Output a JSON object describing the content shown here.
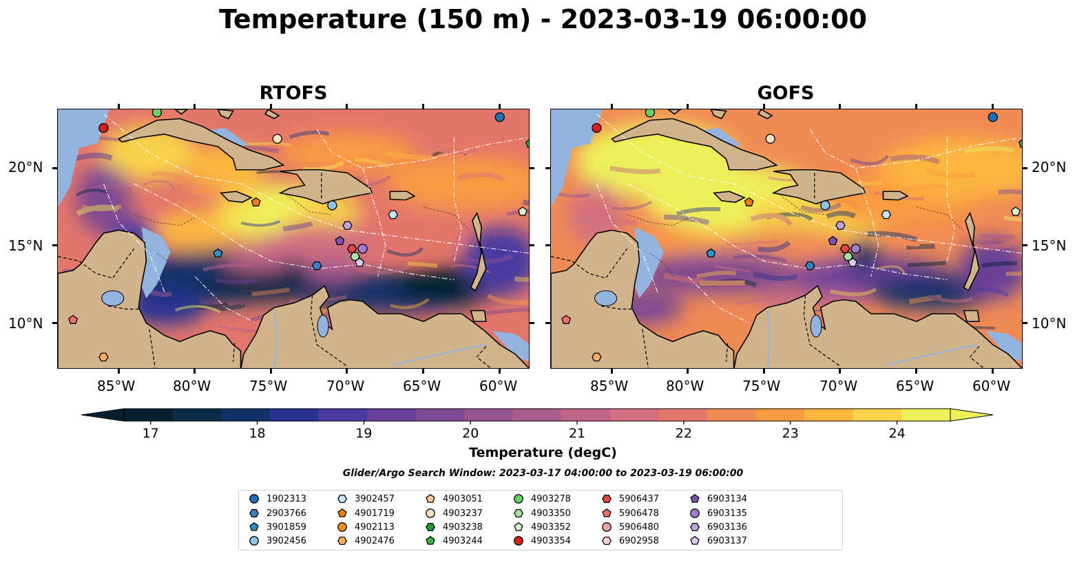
{
  "title": "Temperature (150 m) - 2023-03-19 06:00:00",
  "panels": [
    {
      "name": "RTOFS",
      "variant": "rtofs"
    },
    {
      "name": "GOFS",
      "variant": "gofs"
    }
  ],
  "lat_labels": [
    "20°N",
    "15°N",
    "10°N"
  ],
  "lon_labels": [
    "85°W",
    "80°W",
    "75°W",
    "70°W",
    "65°W",
    "60°W"
  ],
  "colorbar": {
    "label": "Temperature (degC)",
    "ticks": [
      "17",
      "18",
      "19",
      "20",
      "21",
      "22",
      "23",
      "24"
    ],
    "min": 16.75,
    "max": 24.5,
    "colors": [
      "#06202f",
      "#0a2a48",
      "#12306a",
      "#283293",
      "#4a3aa0",
      "#673f98",
      "#7e4a92",
      "#955490",
      "#aa5d8d",
      "#bf668a",
      "#d26f80",
      "#e3766b",
      "#f08a55",
      "#f99a43",
      "#fcb63f",
      "#f7d24a",
      "#eef05a"
    ]
  },
  "search_window": "Glider/Argo Search Window: 2023-03-17 04:00:00 to 2023-03-19 06:00:00",
  "legend": [
    {
      "id": "1902313",
      "shape": "circle",
      "color": "#1f6fb6"
    },
    {
      "id": "2903766",
      "shape": "hexagon",
      "color": "#3a80c3"
    },
    {
      "id": "3901859",
      "shape": "pentagon",
      "color": "#2f8fc8"
    },
    {
      "id": "3902456",
      "shape": "circle",
      "color": "#8fc3ec"
    },
    {
      "id": "3902457",
      "shape": "hexagon",
      "color": "#c6e4f7"
    },
    {
      "id": "4901719",
      "shape": "pentagon",
      "color": "#f07d14"
    },
    {
      "id": "4902113",
      "shape": "circle",
      "color": "#fb8c2a"
    },
    {
      "id": "4902476",
      "shape": "hexagon",
      "color": "#fdad63"
    },
    {
      "id": "4903051",
      "shape": "pentagon",
      "color": "#fdc896"
    },
    {
      "id": "4903237",
      "shape": "circle",
      "color": "#fee0c2"
    },
    {
      "id": "4903238",
      "shape": "hexagon",
      "color": "#1f9a2f"
    },
    {
      "id": "4903244",
      "shape": "pentagon",
      "color": "#3cb544"
    },
    {
      "id": "4903278",
      "shape": "circle",
      "color": "#6ccf6a"
    },
    {
      "id": "4903350",
      "shape": "hexagon",
      "color": "#a6e39c"
    },
    {
      "id": "4903352",
      "shape": "pentagon",
      "color": "#d6f6cf"
    },
    {
      "id": "4903354",
      "shape": "circle",
      "color": "#d62020"
    },
    {
      "id": "5906437",
      "shape": "hexagon",
      "color": "#e34545"
    },
    {
      "id": "5906478",
      "shape": "pentagon",
      "color": "#ef6e6e"
    },
    {
      "id": "5906480",
      "shape": "circle",
      "color": "#f4a4a4"
    },
    {
      "id": "6902958",
      "shape": "hexagon",
      "color": "#fbd3d3"
    },
    {
      "id": "6903134",
      "shape": "pentagon",
      "color": "#7b53b6"
    },
    {
      "id": "6903135",
      "shape": "circle",
      "color": "#a27cd0"
    },
    {
      "id": "6903136",
      "shape": "hexagon",
      "color": "#bea1df"
    },
    {
      "id": "6903137",
      "shape": "pentagon",
      "color": "#ddcaf0"
    }
  ],
  "markers": [
    {
      "id": "5906478",
      "lon": -88.0,
      "lat": 10.2
    },
    {
      "id": "4902476",
      "lon": -86.0,
      "lat": 7.8
    },
    {
      "id": "4903354",
      "lon": -86.0,
      "lat": 22.6
    },
    {
      "id": "4903278",
      "lon": -82.5,
      "lat": 23.6
    },
    {
      "id": "1902313",
      "lon": -60.0,
      "lat": 23.3
    },
    {
      "id": "4903244",
      "lon": -58.0,
      "lat": 21.6
    },
    {
      "id": "4903237",
      "lon": -74.6,
      "lat": 21.9
    },
    {
      "id": "4901719",
      "lon": -76.0,
      "lat": 17.8
    },
    {
      "id": "3902456",
      "lon": -71.0,
      "lat": 17.6
    },
    {
      "id": "3902457",
      "lon": -67.0,
      "lat": 17.0
    },
    {
      "id": "4903352",
      "lon": -58.5,
      "lat": 17.2
    },
    {
      "id": "3901859",
      "lon": -78.5,
      "lat": 14.5
    },
    {
      "id": "2903766",
      "lon": -72.0,
      "lat": 13.7
    },
    {
      "id": "6903136",
      "lon": -70.0,
      "lat": 16.3
    },
    {
      "id": "6903134",
      "lon": -70.5,
      "lat": 15.3
    },
    {
      "id": "5906437",
      "lon": -69.7,
      "lat": 14.8
    },
    {
      "id": "6903135",
      "lon": -69.0,
      "lat": 14.8
    },
    {
      "id": "4903350",
      "lon": -69.5,
      "lat": 14.3
    },
    {
      "id": "6903137",
      "lon": -69.2,
      "lat": 13.9
    }
  ]
}
